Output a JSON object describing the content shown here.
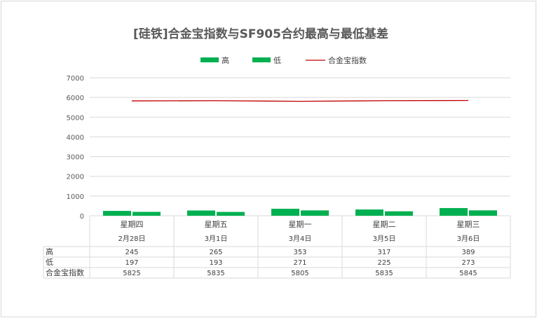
{
  "chart_data": {
    "type": "bar",
    "title": "[硅铁]合金宝指数与SF905合约最高与最低基差",
    "categories": [
      {
        "weekday": "星期四",
        "date": "2月28日"
      },
      {
        "weekday": "星期五",
        "date": "3月1日"
      },
      {
        "weekday": "星期一",
        "date": "3月4日"
      },
      {
        "weekday": "星期二",
        "date": "3月5日"
      },
      {
        "weekday": "星期三",
        "date": "3月6日"
      }
    ],
    "series": [
      {
        "name": "高",
        "kind": "bar",
        "color": "#00b050",
        "values": [
          245,
          265,
          353,
          317,
          389
        ]
      },
      {
        "name": "低",
        "kind": "bar",
        "color": "#00b050",
        "values": [
          197,
          193,
          271,
          225,
          273
        ]
      },
      {
        "name": "合金宝指数",
        "kind": "line",
        "color": "#c00000",
        "values": [
          5825,
          5835,
          5805,
          5835,
          5845
        ]
      }
    ],
    "ylim": [
      0,
      7000
    ],
    "yticks": [
      0,
      1000,
      2000,
      3000,
      4000,
      5000,
      6000,
      7000
    ],
    "grid": true,
    "legend": "top",
    "data_table": true
  }
}
